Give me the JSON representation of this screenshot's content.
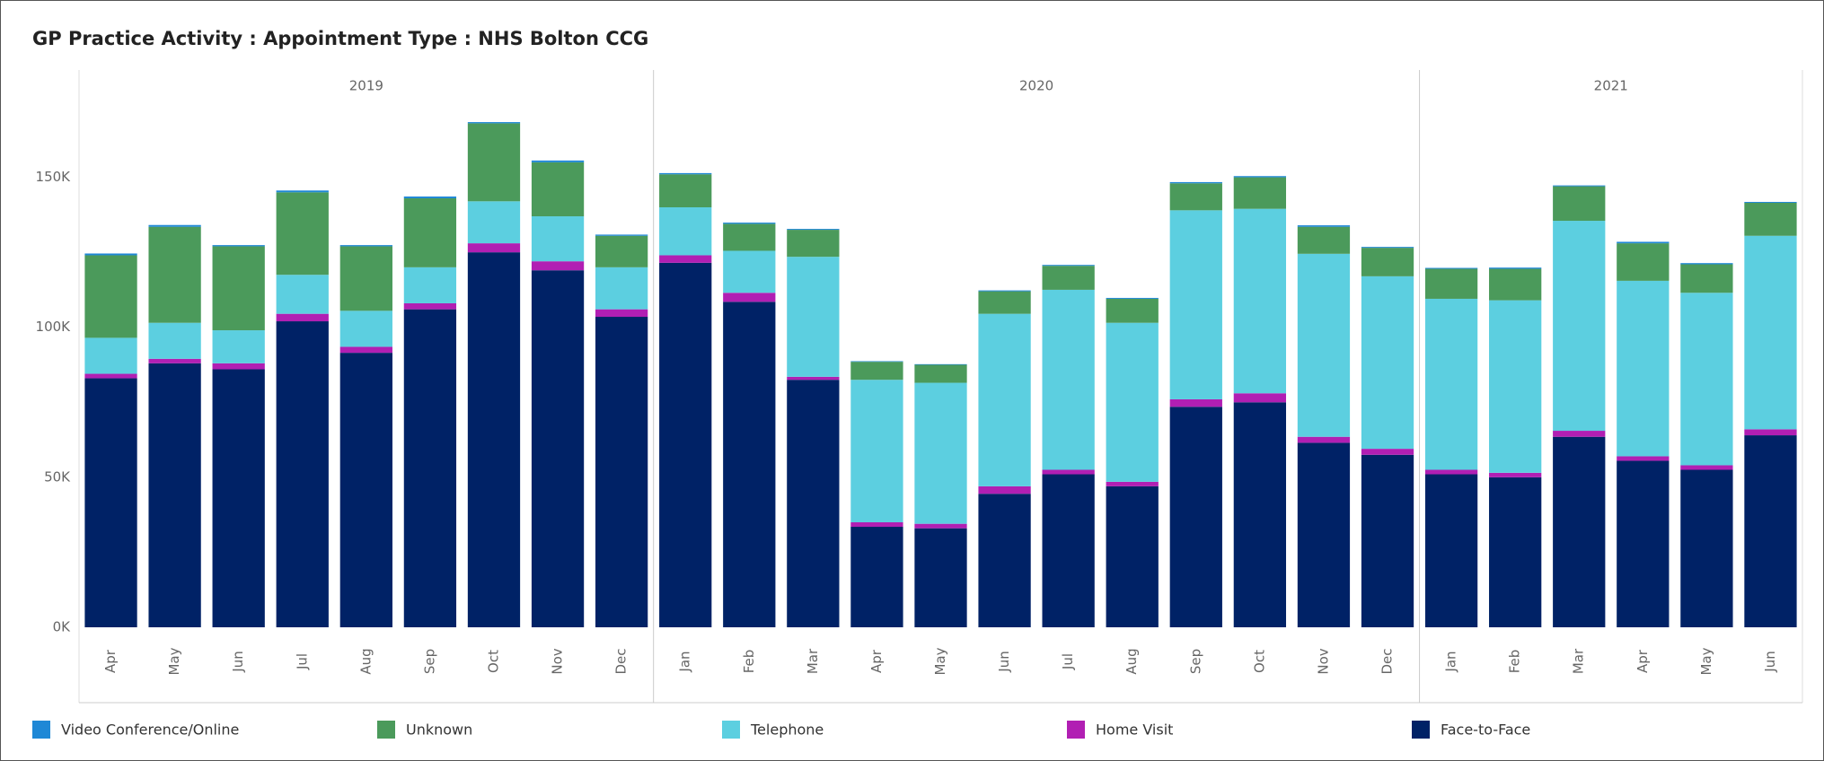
{
  "chart_data": {
    "type": "stacked_bar",
    "title": "GP Practice Activity : Appointment Type : NHS Bolton CCG",
    "groups": [
      {
        "label": "2019",
        "categories": [
          "Apr",
          "May",
          "Jun",
          "Jul",
          "Aug",
          "Sep",
          "Oct",
          "Nov",
          "Dec"
        ]
      },
      {
        "label": "2020",
        "categories": [
          "Jan",
          "Feb",
          "Mar",
          "Apr",
          "May",
          "Jun",
          "Jul",
          "Aug",
          "Sep",
          "Oct",
          "Nov",
          "Dec"
        ]
      },
      {
        "label": "2021",
        "categories": [
          "Jan",
          "Feb",
          "Mar",
          "Apr",
          "May",
          "Jun"
        ]
      }
    ],
    "series": [
      {
        "name": "Video Conference/Online",
        "color": "#1f88d6",
        "values": [
          600,
          600,
          400,
          600,
          400,
          600,
          400,
          600,
          400,
          400,
          400,
          300,
          200,
          200,
          300,
          300,
          300,
          400,
          400,
          500,
          300,
          300,
          400,
          300,
          500,
          400,
          300
        ]
      },
      {
        "name": "Unknown",
        "color": "#4b9a5b",
        "values": [
          27500,
          32000,
          28000,
          27500,
          21500,
          23000,
          26000,
          18000,
          10500,
          11000,
          9000,
          9000,
          6000,
          6000,
          7500,
          8000,
          8000,
          9000,
          10500,
          9000,
          9500,
          10000,
          10500,
          11500,
          12500,
          9500,
          11000
        ]
      },
      {
        "name": "Telephone",
        "color": "#5ccfe0",
        "values": [
          12000,
          12000,
          11000,
          13000,
          12000,
          12000,
          14000,
          15000,
          14000,
          16000,
          14000,
          40000,
          47500,
          47000,
          57500,
          60000,
          53000,
          63000,
          61500,
          61000,
          57500,
          57000,
          57500,
          70000,
          58500,
          57500,
          64500
        ]
      },
      {
        "name": "Home Visit",
        "color": "#b11fb3",
        "values": [
          1500,
          1500,
          2000,
          2500,
          2000,
          2000,
          3000,
          3000,
          2500,
          2500,
          3000,
          1000,
          1500,
          1500,
          2500,
          1500,
          1500,
          2500,
          3000,
          2000,
          2000,
          1500,
          1500,
          2000,
          1500,
          1500,
          2000
        ]
      },
      {
        "name": "Face-to-Face",
        "color": "#002266",
        "values": [
          83000,
          88000,
          86000,
          102000,
          91500,
          106000,
          125000,
          119000,
          103500,
          121500,
          108500,
          82500,
          33500,
          33000,
          44500,
          51000,
          47000,
          73500,
          75000,
          61500,
          57500,
          51000,
          50000,
          63500,
          55500,
          52500,
          64000
        ]
      }
    ],
    "ylim": [
      0,
      175000
    ],
    "yticks": [
      {
        "value": 0,
        "label": "0K"
      },
      {
        "value": 50000,
        "label": "50K"
      },
      {
        "value": 100000,
        "label": "100K"
      },
      {
        "value": 150000,
        "label": "150K"
      }
    ],
    "grid": false
  }
}
